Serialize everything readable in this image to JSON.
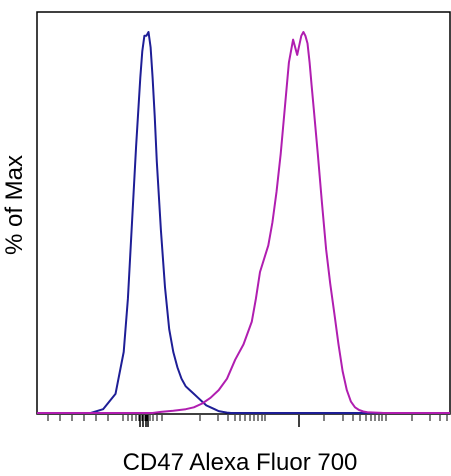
{
  "chart_data": {
    "type": "line",
    "title": "",
    "xlabel": "CD47 Alexa Fluor 700",
    "ylabel": "% of Max",
    "x_scale": "log (biexponential display)",
    "xlim": [
      0,
      1
    ],
    "ylim": [
      0,
      100
    ],
    "grid": false,
    "legend": "none",
    "x_tick_labels": [],
    "series": [
      {
        "color": "#1e1e96",
        "x": [
          0.0,
          0.13,
          0.16,
          0.19,
          0.21,
          0.22,
          0.23,
          0.24,
          0.25,
          0.255,
          0.26,
          0.265,
          0.27,
          0.275,
          0.28,
          0.285,
          0.29,
          0.3,
          0.31,
          0.32,
          0.33,
          0.34,
          0.35,
          0.36,
          0.37,
          0.38,
          0.39,
          0.4,
          0.41,
          0.42,
          0.43,
          0.44,
          0.45,
          0.46,
          0.47,
          0.5,
          1.0
        ],
        "y": [
          0,
          0,
          1,
          5,
          16,
          30,
          50,
          70,
          88,
          95,
          99,
          99,
          100,
          96,
          88,
          78,
          66,
          48,
          33,
          22,
          16,
          12,
          9,
          7,
          6,
          5,
          4,
          3,
          2,
          1.5,
          1,
          0.5,
          0.3,
          0.1,
          0,
          0,
          0
        ]
      },
      {
        "color": "#b01eb0",
        "x": [
          0.0,
          0.28,
          0.3,
          0.33,
          0.36,
          0.38,
          0.4,
          0.42,
          0.44,
          0.46,
          0.48,
          0.5,
          0.52,
          0.53,
          0.54,
          0.56,
          0.57,
          0.58,
          0.59,
          0.6,
          0.61,
          0.62,
          0.63,
          0.64,
          0.645,
          0.65,
          0.655,
          0.66,
          0.665,
          0.67,
          0.68,
          0.69,
          0.7,
          0.71,
          0.72,
          0.73,
          0.74,
          0.75,
          0.76,
          0.77,
          0.78,
          0.79,
          0.8,
          0.82,
          0.84,
          1.0
        ],
        "y": [
          0,
          0,
          0.3,
          0.6,
          1,
          1.5,
          2.5,
          4,
          6,
          9,
          14,
          18,
          24,
          30,
          37,
          44,
          50,
          58,
          68,
          80,
          92,
          98,
          94,
          99,
          100,
          99,
          97,
          92,
          86,
          80,
          68,
          55,
          43,
          34,
          26,
          18,
          11,
          6,
          3,
          1.5,
          0.8,
          0.4,
          0.2,
          0.1,
          0,
          0
        ]
      }
    ]
  }
}
